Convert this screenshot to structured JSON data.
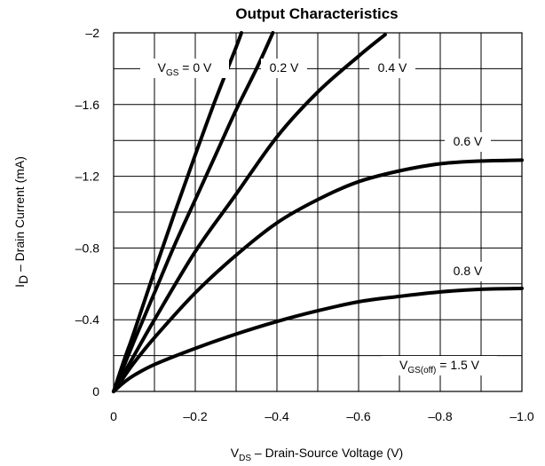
{
  "chart_data": {
    "type": "line",
    "title": "Output Characteristics",
    "xlabel": {
      "main": "V",
      "sub": "DS",
      "rest": " – Drain-Source Voltage (V)"
    },
    "ylabel": {
      "main": "I",
      "sub": "D",
      "rest": " – Drain Current (mA)"
    },
    "xlim": [
      0,
      -1.0
    ],
    "ylim": [
      0,
      -2
    ],
    "x_ticks": [
      0,
      -0.2,
      -0.4,
      -0.6,
      -0.8,
      -1.0
    ],
    "x_tick_labels": [
      "0",
      "–0.2",
      "–0.4",
      "–0.6",
      "–0.8",
      "–1.0"
    ],
    "y_ticks": [
      0,
      -0.4,
      -0.8,
      -1.2,
      -1.6,
      -2
    ],
    "y_tick_labels": [
      "0",
      "–0.4",
      "–0.8",
      "–1.2",
      "–1.6",
      "–2"
    ],
    "grid": true,
    "series": [
      {
        "name": "V_GS = 0 V",
        "x": [
          0,
          -0.025,
          -0.05,
          -0.1,
          -0.15,
          -0.2,
          -0.25,
          -0.3,
          -0.313
        ],
        "y": [
          0,
          -0.17,
          -0.33,
          -0.67,
          -1.0,
          -1.32,
          -1.63,
          -1.92,
          -2.0
        ]
      },
      {
        "name": "0.2 V",
        "x": [
          0,
          -0.025,
          -0.05,
          -0.1,
          -0.15,
          -0.2,
          -0.25,
          -0.3,
          -0.35,
          -0.39
        ],
        "y": [
          0,
          -0.14,
          -0.28,
          -0.55,
          -0.82,
          -1.07,
          -1.32,
          -1.57,
          -1.8,
          -2.0
        ]
      },
      {
        "name": "0.4 V",
        "x": [
          0,
          -0.025,
          -0.05,
          -0.1,
          -0.2,
          -0.3,
          -0.4,
          -0.5,
          -0.6,
          -0.665
        ],
        "y": [
          0,
          -0.1,
          -0.2,
          -0.4,
          -0.78,
          -1.1,
          -1.42,
          -1.67,
          -1.87,
          -1.99
        ]
      },
      {
        "name": "0.6 V",
        "x": [
          0,
          -0.025,
          -0.05,
          -0.1,
          -0.2,
          -0.3,
          -0.4,
          -0.5,
          -0.6,
          -0.7,
          -0.8,
          -0.9,
          -1.0
        ],
        "y": [
          0,
          -0.08,
          -0.16,
          -0.3,
          -0.55,
          -0.76,
          -0.94,
          -1.07,
          -1.17,
          -1.23,
          -1.27,
          -1.285,
          -1.29
        ]
      },
      {
        "name": "0.8 V",
        "x": [
          0,
          -0.025,
          -0.05,
          -0.1,
          -0.2,
          -0.3,
          -0.4,
          -0.5,
          -0.6,
          -0.7,
          -0.8,
          -0.9,
          -1.0
        ],
        "y": [
          0,
          -0.05,
          -0.09,
          -0.15,
          -0.24,
          -0.32,
          -0.39,
          -0.45,
          -0.5,
          -0.53,
          -0.555,
          -0.57,
          -0.575
        ]
      }
    ],
    "curve_labels": [
      {
        "main": "V",
        "sub": "GS",
        "rest": " = 0 V"
      },
      {
        "main": "0.2 V",
        "sub": "",
        "rest": ""
      },
      {
        "main": "0.4 V",
        "sub": "",
        "rest": ""
      },
      {
        "main": "0.6 V",
        "sub": "",
        "rest": ""
      },
      {
        "main": "0.8 V",
        "sub": "",
        "rest": ""
      },
      {
        "main": "V",
        "sub": "GS(off)",
        "rest": " = 1.5 V"
      }
    ]
  }
}
